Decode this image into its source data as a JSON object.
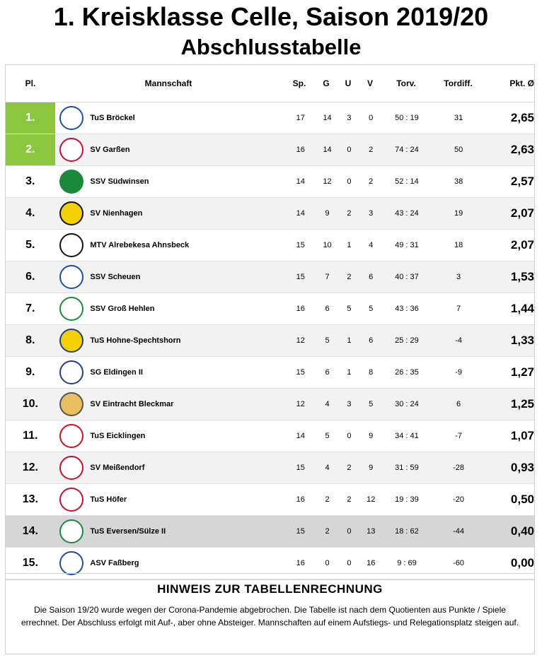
{
  "title": "1. Kreisklasse Celle, Saison 2019/20",
  "subtitle": "Abschlusstabelle",
  "headers": {
    "pl": "Pl.",
    "team": "Mannschaft",
    "sp": "Sp.",
    "g": "G",
    "u": "U",
    "v": "V",
    "torv": "Torv.",
    "diff": "Tordiff.",
    "pkt": "Pkt. Ø"
  },
  "rows": [
    {
      "pl": "1.",
      "team": "TuS Bröckel",
      "sp": "17",
      "g": "14",
      "u": "3",
      "v": "0",
      "torv": "50 : 19",
      "diff": "31",
      "pkt": "2,65",
      "status": "promoted",
      "logo": "crest-blue-white-icon"
    },
    {
      "pl": "2.",
      "team": "SV Garßen",
      "sp": "16",
      "g": "14",
      "u": "0",
      "v": "2",
      "torv": "74 : 24",
      "diff": "50",
      "pkt": "2,63",
      "status": "promoted",
      "logo": "crest-red-white-icon"
    },
    {
      "pl": "3.",
      "team": "SSV Südwinsen",
      "sp": "14",
      "g": "12",
      "u": "0",
      "v": "2",
      "torv": "52 : 14",
      "diff": "38",
      "pkt": "2,57",
      "status": "",
      "logo": "crest-green-icon"
    },
    {
      "pl": "4.",
      "team": "SV Nienhagen",
      "sp": "14",
      "g": "9",
      "u": "2",
      "v": "3",
      "torv": "43 : 24",
      "diff": "19",
      "pkt": "2,07",
      "status": "",
      "logo": "crest-yellow-black-icon"
    },
    {
      "pl": "5.",
      "team": "MTV Alrebekesa Ahnsbeck",
      "sp": "15",
      "g": "10",
      "u": "1",
      "v": "4",
      "torv": "49 : 31",
      "diff": "18",
      "pkt": "2,07",
      "status": "",
      "logo": "crest-black-white-icon"
    },
    {
      "pl": "6.",
      "team": "SSV Scheuen",
      "sp": "15",
      "g": "7",
      "u": "2",
      "v": "6",
      "torv": "40 : 37",
      "diff": "3",
      "pkt": "1,53",
      "status": "",
      "logo": "crest-blue-icon"
    },
    {
      "pl": "7.",
      "team": "SSV Groß Hehlen",
      "sp": "16",
      "g": "6",
      "u": "5",
      "v": "5",
      "torv": "43 : 36",
      "diff": "7",
      "pkt": "1,44",
      "status": "",
      "logo": "crest-green-white-icon"
    },
    {
      "pl": "8.",
      "team": "TuS Hohne-Spechtshorn",
      "sp": "12",
      "g": "5",
      "u": "1",
      "v": "6",
      "torv": "25 : 29",
      "diff": "-4",
      "pkt": "1,33",
      "status": "",
      "logo": "crest-blue-yellow-icon"
    },
    {
      "pl": "9.",
      "team": "SG Eldingen II",
      "sp": "15",
      "g": "6",
      "u": "1",
      "v": "8",
      "torv": "26 : 35",
      "diff": "-9",
      "pkt": "1,27",
      "status": "",
      "logo": "crest-navy-icon"
    },
    {
      "pl": "10.",
      "team": "SV Eintracht Bleckmar",
      "sp": "12",
      "g": "4",
      "u": "3",
      "v": "5",
      "torv": "30 : 24",
      "diff": "6",
      "pkt": "1,25",
      "status": "",
      "logo": "crest-town-icon"
    },
    {
      "pl": "11.",
      "team": "TuS Eicklingen",
      "sp": "14",
      "g": "5",
      "u": "0",
      "v": "9",
      "torv": "34 : 41",
      "diff": "-7",
      "pkt": "1,07",
      "status": "",
      "logo": "crest-red-icon"
    },
    {
      "pl": "12.",
      "team": "SV Meißendorf",
      "sp": "15",
      "g": "4",
      "u": "2",
      "v": "9",
      "torv": "31 : 59",
      "diff": "-28",
      "pkt": "0,93",
      "status": "",
      "logo": "crest-red-shield-icon"
    },
    {
      "pl": "13.",
      "team": "TuS Höfer",
      "sp": "16",
      "g": "2",
      "u": "2",
      "v": "12",
      "torv": "19 : 39",
      "diff": "-20",
      "pkt": "0,50",
      "status": "",
      "logo": "crest-red-circle-icon"
    },
    {
      "pl": "14.",
      "team": "TuS Eversen/Sülze II",
      "sp": "15",
      "g": "2",
      "u": "0",
      "v": "13",
      "torv": "18 : 62",
      "diff": "-44",
      "pkt": "0,40",
      "status": "relegation",
      "logo": "crest-green-shield-icon"
    },
    {
      "pl": "15.",
      "team": "ASV Faßberg",
      "sp": "16",
      "g": "0",
      "u": "0",
      "v": "16",
      "torv": "9 : 69",
      "diff": "-60",
      "pkt": "0,00",
      "status": "",
      "logo": "crest-asv-icon"
    }
  ],
  "note": {
    "title": "HINWEIS ZUR TABELLENRECHNUNG",
    "text": "Die Saison 19/20 wurde wegen der Corona-Pandemie abgebrochen. Die Tabelle ist nach dem Quotienten aus Punkte / Spiele errechnet. Der Abschluss erfolgt mit Auf-, aber ohne Absteiger. Mannschaften auf einem Aufstiegs- und Relegationsplatz steigen auf."
  },
  "colors": {
    "promoted": "#8cc63f",
    "relegation": "#d6d6d6",
    "alt_row": "#f2f2f2"
  }
}
